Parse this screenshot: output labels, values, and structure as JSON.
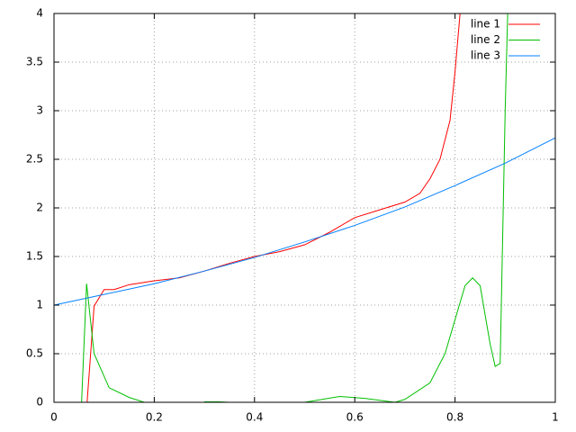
{
  "chart_data": {
    "type": "line",
    "xlim": [
      0,
      1
    ],
    "ylim": [
      0,
      4
    ],
    "xticks": [
      0,
      0.2,
      0.4,
      0.6,
      0.8,
      1
    ],
    "yticks": [
      0,
      0.5,
      1,
      1.5,
      2,
      2.5,
      3,
      3.5,
      4
    ],
    "grid": true,
    "legend": "top-right",
    "series": [
      {
        "name": "line 1",
        "color": "#ff0000",
        "x": [
          0.066,
          0.08,
          0.1,
          0.12,
          0.15,
          0.2,
          0.25,
          0.3,
          0.35,
          0.4,
          0.45,
          0.5,
          0.55,
          0.6,
          0.65,
          0.7,
          0.73,
          0.75,
          0.77,
          0.79,
          0.8,
          0.81
        ],
        "values": [
          0,
          0.99,
          1.16,
          1.16,
          1.21,
          1.25,
          1.28,
          1.35,
          1.43,
          1.5,
          1.55,
          1.62,
          1.75,
          1.9,
          1.98,
          2.06,
          2.15,
          2.3,
          2.5,
          2.9,
          3.4,
          4
        ]
      },
      {
        "name": "line 2",
        "color": "#00c000",
        "x": [
          0.055,
          0.065,
          0.08,
          0.11,
          0.15,
          0.18,
          0.25,
          0.3,
          0.33,
          0.35,
          0.42,
          0.5,
          0.57,
          0.62,
          0.68,
          0.7,
          0.75,
          0.78,
          0.8,
          0.82,
          0.835,
          0.85,
          0.87,
          0.88,
          0.89,
          0.9,
          0.905
        ],
        "values": [
          0,
          1.22,
          0.5,
          0.15,
          0.05,
          0,
          null,
          0.005,
          0.005,
          0,
          null,
          0,
          0.06,
          0.04,
          0,
          0.03,
          0.2,
          0.5,
          0.85,
          1.2,
          1.28,
          1.2,
          0.6,
          0.37,
          0.4,
          3,
          4
        ]
      },
      {
        "name": "line 3",
        "color": "#0080ff",
        "x": [
          0,
          0.1,
          0.2,
          0.3,
          0.4,
          0.5,
          0.6,
          0.7,
          0.8,
          0.9,
          1
        ],
        "values": [
          1,
          1.11,
          1.22,
          1.35,
          1.49,
          1.65,
          1.82,
          2.01,
          2.23,
          2.46,
          2.72
        ]
      }
    ]
  }
}
